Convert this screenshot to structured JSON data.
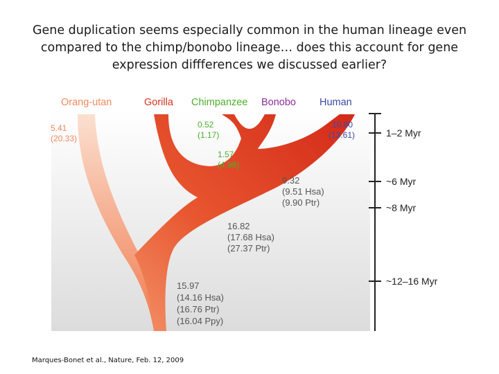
{
  "title": "Gene duplication seems especially common in the human lineage even compared to the chimp/bonobo lineage… does this account for gene expression diffferences we discussed earlier?",
  "citation": "Marques-Bonet et al., Nature, Feb. 12, 2009",
  "colors": {
    "orangutan": "#f08a5d",
    "gorilla": "#e4572e",
    "chimpanzee": "#4caf2a",
    "bonobo": "#8a2f98",
    "human": "#3c48a8",
    "branch_dark": "#d8321e",
    "branch_light": "#f4b79a",
    "values": "#555555",
    "axis": "#222222"
  },
  "species": {
    "orangutan": "Orang-utan",
    "gorilla": "Gorilla",
    "chimpanzee": "Chimpanzee",
    "bonobo": "Bonobo",
    "human": "Human"
  },
  "values": {
    "orangutan": {
      "a": "5.41",
      "b": "(20.33)"
    },
    "chimp_bonobo": {
      "a": "0.52",
      "b": "(1.17)"
    },
    "chimp_stem": {
      "a": "1.57",
      "b": "(4.98)"
    },
    "human": {
      "a": "10.80",
      "b": "(13.61)"
    },
    "human_chimp_node": {
      "a": "9.32",
      "b": "(9.51 Hsa)",
      "c": "(9.90 Ptr)"
    },
    "gorilla_node": {
      "a": "16.82",
      "b": "(17.68 Hsa)",
      "c": "(27.37 Ptr)"
    },
    "root": {
      "a": "15.97",
      "b": "(14.16 Hsa)",
      "c": "(16.76 Ptr)",
      "d": "(16.04 Ppy)"
    }
  },
  "timescale": [
    "1–2 Myr",
    "~6 Myr",
    "~8 Myr",
    "~12–16 Myr"
  ]
}
